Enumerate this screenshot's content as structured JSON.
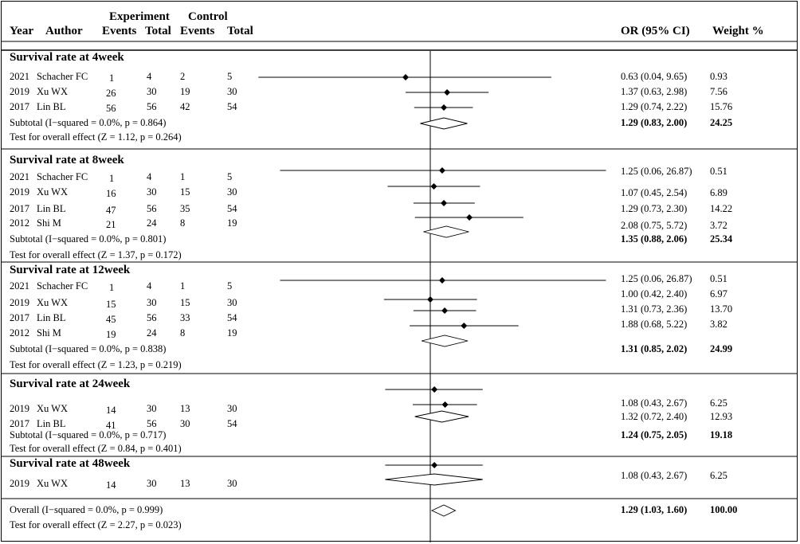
{
  "header": {
    "year": "Year",
    "author": "Author",
    "experiment": "Experiment",
    "control": "Control",
    "exp_events": "Events",
    "exp_total": "Total",
    "ctl_events": "Events",
    "ctl_total": "Total",
    "or_ci": "OR (95% CI)",
    "weight": "Weight %"
  },
  "chart_data": {
    "type": "forest",
    "null_value": 1,
    "groups": [
      {
        "title": "Survival rate at 4week",
        "studies": [
          {
            "year": "2021",
            "author": "Schacher FC",
            "e_events": "1",
            "e_total": "4",
            "c_events": "2",
            "c_total": "5",
            "or": 0.63,
            "lo": 0.04,
            "hi": 9.65,
            "or_ci": "0.63 (0.04, 9.65)",
            "weight": "0.93"
          },
          {
            "year": "2019",
            "author": "Xu WX",
            "e_events": "26",
            "e_total": "30",
            "c_events": "19",
            "c_total": "30",
            "or": 1.37,
            "lo": 0.63,
            "hi": 2.98,
            "or_ci": "1.37 (0.63, 2.98)",
            "weight": "7.56"
          },
          {
            "year": "2017",
            "author": "Lin BL",
            "e_events": "56",
            "e_total": "56",
            "c_events": "42",
            "c_total": "54",
            "or": 1.29,
            "lo": 0.74,
            "hi": 2.22,
            "or_ci": "1.29 (0.74, 2.22)",
            "weight": "15.76"
          }
        ],
        "subtotal": {
          "label": "Subtotal  (I−squared = 0.0%, p = 0.864)",
          "or": 1.29,
          "lo": 0.83,
          "hi": 2.0,
          "or_ci": "1.29 (0.83, 2.00)",
          "weight": "24.25"
        },
        "test": "Test for overall effect (Z = 1.12, p = 0.264)"
      },
      {
        "title": "Survival rate at 8week",
        "studies": [
          {
            "year": "2021",
            "author": "Schacher FC",
            "e_events": "1",
            "e_total": "4",
            "c_events": "1",
            "c_total": "5",
            "or": 1.25,
            "lo": 0.06,
            "hi": 26.87,
            "or_ci": "1.25 (0.06, 26.87)",
            "weight": "0.51"
          },
          {
            "year": "2019",
            "author": "Xu WX",
            "e_events": "16",
            "e_total": "30",
            "c_events": "15",
            "c_total": "30",
            "or": 1.07,
            "lo": 0.45,
            "hi": 2.54,
            "or_ci": "1.07 (0.45, 2.54)",
            "weight": "6.89"
          },
          {
            "year": "2017",
            "author": "Lin BL",
            "e_events": "47",
            "e_total": "56",
            "c_events": "35",
            "c_total": "54",
            "or": 1.29,
            "lo": 0.73,
            "hi": 2.3,
            "or_ci": "1.29 (0.73, 2.30)",
            "weight": "14.22"
          },
          {
            "year": "2012",
            "author": "Shi M",
            "e_events": "21",
            "e_total": "24",
            "c_events": "8",
            "c_total": "19",
            "or": 2.08,
            "lo": 0.75,
            "hi": 5.72,
            "or_ci": "2.08 (0.75, 5.72)",
            "weight": "3.72"
          }
        ],
        "subtotal": {
          "label": "Subtotal  (I−squared = 0.0%, p = 0.801)",
          "or": 1.35,
          "lo": 0.88,
          "hi": 2.06,
          "or_ci": "1.35 (0.88, 2.06)",
          "weight": "25.34"
        },
        "test": "Test for overall effect (Z = 1.37, p = 0.172)"
      },
      {
        "title": "Survival rate at 12week",
        "studies": [
          {
            "year": "2021",
            "author": "Schacher FC",
            "e_events": "1",
            "e_total": "4",
            "c_events": "1",
            "c_total": "5",
            "or": 1.25,
            "lo": 0.06,
            "hi": 26.87,
            "or_ci": "1.25 (0.06, 26.87)",
            "weight": "0.51"
          },
          {
            "year": "2019",
            "author": "Xu WX",
            "e_events": "15",
            "e_total": "30",
            "c_events": "15",
            "c_total": "30",
            "or": 1.0,
            "lo": 0.42,
            "hi": 2.4,
            "or_ci": "1.00 (0.42, 2.40)",
            "weight": "6.97"
          },
          {
            "year": "2017",
            "author": "Lin BL",
            "e_events": "45",
            "e_total": "56",
            "c_events": "33",
            "c_total": "54",
            "or": 1.31,
            "lo": 0.73,
            "hi": 2.36,
            "or_ci": "1.31 (0.73, 2.36)",
            "weight": "13.70"
          },
          {
            "year": "2012",
            "author": "Shi M",
            "e_events": "19",
            "e_total": "24",
            "c_events": "8",
            "c_total": "19",
            "or": 1.88,
            "lo": 0.68,
            "hi": 5.22,
            "or_ci": "1.88 (0.68, 5.22)",
            "weight": "3.82"
          }
        ],
        "subtotal": {
          "label": "Subtotal  (I−squared = 0.0%, p = 0.838)",
          "or": 1.31,
          "lo": 0.85,
          "hi": 2.02,
          "or_ci": "1.31 (0.85, 2.02)",
          "weight": "24.99"
        },
        "test": "Test for overall effect (Z = 1.23, p = 0.219)"
      },
      {
        "title": "Survival rate at 24week",
        "studies": [
          {
            "year": "2019",
            "author": "Xu WX",
            "e_events": "14",
            "e_total": "30",
            "c_events": "13",
            "c_total": "30",
            "or": 1.08,
            "lo": 0.43,
            "hi": 2.67,
            "or_ci": "1.08 (0.43, 2.67)",
            "weight": "6.25"
          },
          {
            "year": "2017",
            "author": "Lin BL",
            "e_events": "41",
            "e_total": "56",
            "c_events": "30",
            "c_total": "54",
            "or": 1.32,
            "lo": 0.72,
            "hi": 2.4,
            "or_ci": "1.32 (0.72, 2.40)",
            "weight": "12.93"
          }
        ],
        "subtotal": {
          "label": "Subtotal  (I−squared = 0.0%, p = 0.717)",
          "or": 1.24,
          "lo": 0.75,
          "hi": 2.05,
          "or_ci": "1.24 (0.75, 2.05)",
          "weight": "19.18"
        },
        "test": "Test for overall effect (Z = 0.84, p = 0.401)"
      },
      {
        "title": "Survival rate at 48week",
        "studies": [
          {
            "year": "2019",
            "author": "Xu WX",
            "e_events": "14",
            "e_total": "30",
            "c_events": "13",
            "c_total": "30",
            "or": 1.08,
            "lo": 0.43,
            "hi": 2.67,
            "or_ci": "1.08 (0.43, 2.67)",
            "weight": "6.25"
          }
        ],
        "subtotal": {
          "label": "",
          "or": 1.08,
          "lo": 0.43,
          "hi": 2.67,
          "or_ci": "",
          "weight": ""
        },
        "test": ""
      }
    ],
    "overall": {
      "label": "Overall  (I−squared = 0.0%, p = 0.999)",
      "or": 1.29,
      "lo": 1.03,
      "hi": 1.6,
      "or_ci": "1.29 (1.03, 1.60)",
      "weight": "100.00"
    },
    "overall_test": "Test for overall effect (Z = 2.27, p = 0.023)"
  }
}
